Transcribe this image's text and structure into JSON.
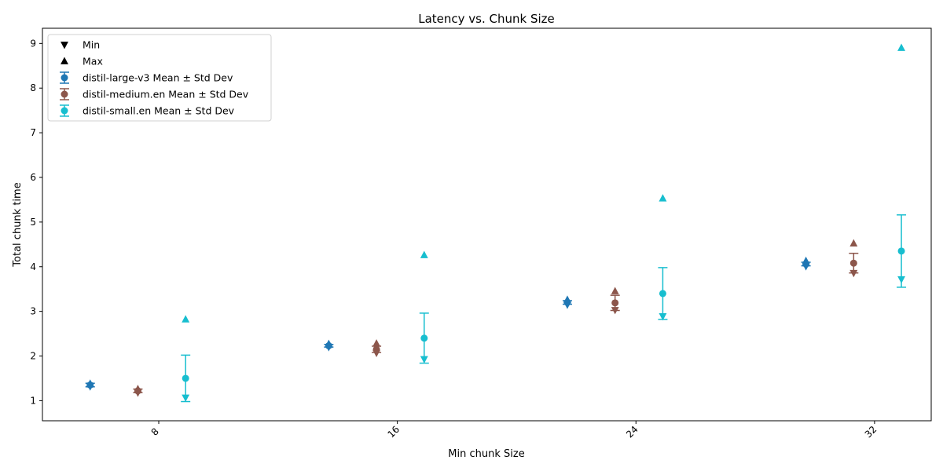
{
  "chart_data": {
    "type": "scatter",
    "title": "Latency vs. Chunk Size",
    "xlabel": "Min chunk Size",
    "ylabel": "Total chunk time",
    "xticks": [
      "8",
      "16",
      "24",
      "32"
    ],
    "xtick_values": [
      8,
      16,
      24,
      32
    ],
    "yticks": [
      "1",
      "2",
      "3",
      "4",
      "5",
      "6",
      "7",
      "8",
      "9"
    ],
    "xlim": [
      4.1,
      33.9
    ],
    "ylim": [
      0.55,
      9.34
    ],
    "grid": false,
    "legend_placement": "top-left",
    "legend": {
      "min_label": "Min",
      "max_label": "Max"
    },
    "series": [
      {
        "name": "distil-large-v3 Mean ± Std Dev",
        "color": "#1f77b4",
        "x": [
          5.7,
          13.7,
          21.7,
          29.7
        ],
        "mean": [
          1.35,
          2.23,
          3.2,
          4.06
        ],
        "std": [
          0.04,
          0.03,
          0.04,
          0.04
        ],
        "min": [
          1.32,
          2.2,
          3.15,
          4.01
        ],
        "max": [
          1.38,
          2.27,
          3.26,
          4.13
        ]
      },
      {
        "name": "distil-medium.en Mean ± Std Dev",
        "color": "#8c564b",
        "x": [
          7.3,
          15.3,
          23.3,
          31.3
        ],
        "mean": [
          1.22,
          2.15,
          3.19,
          4.08
        ],
        "std": [
          0.04,
          0.07,
          0.17,
          0.22
        ],
        "min": [
          1.18,
          2.07,
          3.03,
          3.86
        ],
        "max": [
          1.26,
          2.28,
          3.45,
          4.52
        ]
      },
      {
        "name": "distil-small.en Mean ± Std Dev",
        "color": "#17becf",
        "x": [
          8.9,
          16.9,
          24.9,
          32.9
        ],
        "mean": [
          1.5,
          2.4,
          3.4,
          4.35
        ],
        "std": [
          0.52,
          0.56,
          0.58,
          0.81
        ],
        "min": [
          1.07,
          1.93,
          2.89,
          3.72
        ],
        "max": [
          2.82,
          4.26,
          5.53,
          8.9
        ]
      }
    ]
  }
}
